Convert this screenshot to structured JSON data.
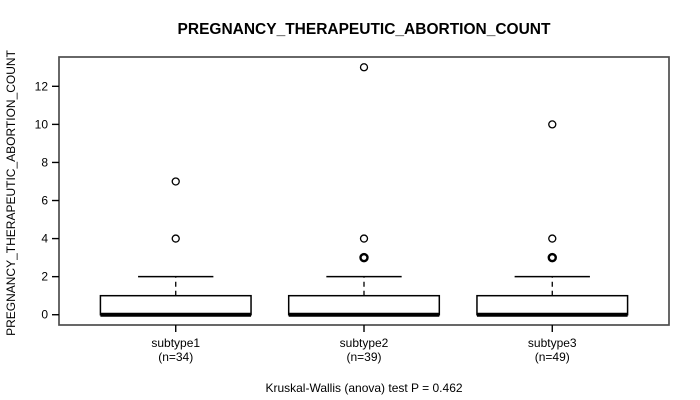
{
  "page": {
    "background": "#ffffff"
  },
  "chart_data": {
    "type": "box",
    "title": "PREGNANCY_THERAPEUTIC_ABORTION_COUNT",
    "ylabel": "PREGNANCY_THERAPEUTIC_ABORTION_COUNT",
    "caption": "Kruskal-Wallis (anova) test P = 0.462",
    "categories": [
      "subtype1",
      "subtype2",
      "subtype3"
    ],
    "category_sublabels": [
      "(n=34)",
      "(n=39)",
      "(n=49)"
    ],
    "yticks": [
      0,
      2,
      4,
      6,
      8,
      10,
      12
    ],
    "ylim": [
      -0.54,
      13.54
    ],
    "grid": false,
    "legend": null,
    "line_color": "#000000",
    "frame_color": "#4d4d4d",
    "box_fill": "#ffffff",
    "boxes": [
      {
        "category": "subtype1",
        "n": 34,
        "q1": 0,
        "median": 0,
        "q3": 1,
        "whisker_low": 0,
        "whisker_high": 2,
        "outliers": [
          {
            "value": 4,
            "emphasis": false
          },
          {
            "value": 7,
            "emphasis": false
          }
        ]
      },
      {
        "category": "subtype2",
        "n": 39,
        "q1": 0,
        "median": 0,
        "q3": 1,
        "whisker_low": 0,
        "whisker_high": 2,
        "outliers": [
          {
            "value": 3,
            "emphasis": true
          },
          {
            "value": 4,
            "emphasis": false
          },
          {
            "value": 13,
            "emphasis": false
          }
        ]
      },
      {
        "category": "subtype3",
        "n": 49,
        "q1": 0,
        "median": 0,
        "q3": 1,
        "whisker_low": 0,
        "whisker_high": 2,
        "outliers": [
          {
            "value": 3,
            "emphasis": true
          },
          {
            "value": 4,
            "emphasis": false
          },
          {
            "value": 10,
            "emphasis": false
          }
        ]
      }
    ]
  }
}
